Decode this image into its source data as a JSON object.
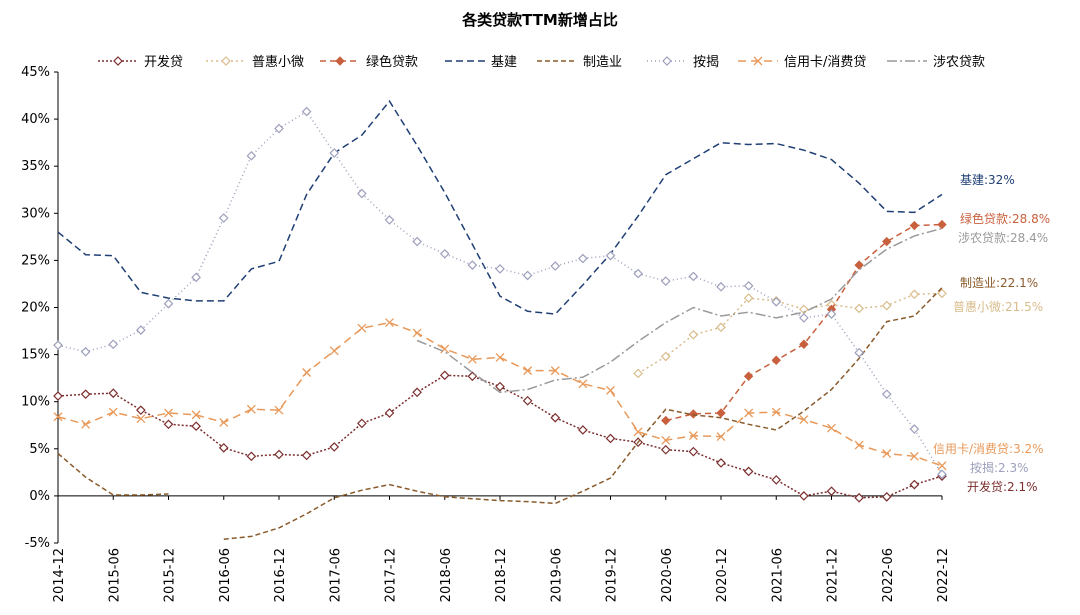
{
  "chart_data": {
    "type": "line",
    "title": "各类贷款TTM新增占比",
    "ylim": [
      -5,
      45
    ],
    "yticks": [
      -5,
      0,
      5,
      10,
      15,
      20,
      25,
      30,
      35,
      40,
      45
    ],
    "ytick_labels": [
      "-5%",
      "0%",
      "5%",
      "10%",
      "15%",
      "20%",
      "25%",
      "30%",
      "35%",
      "40%",
      "45%"
    ],
    "x_tick_labels": [
      "2014-12",
      "2015-06",
      "2015-12",
      "2016-06",
      "2016-12",
      "2017-06",
      "2017-12",
      "2018-06",
      "2018-12",
      "2019-06",
      "2019-12",
      "2020-06",
      "2020-12",
      "2021-06",
      "2021-12",
      "2022-06",
      "2022-12"
    ],
    "x": [
      "2014-12",
      "2015-03",
      "2015-06",
      "2015-09",
      "2015-12",
      "2016-03",
      "2016-06",
      "2016-09",
      "2016-12",
      "2017-03",
      "2017-06",
      "2017-09",
      "2017-12",
      "2018-03",
      "2018-06",
      "2018-09",
      "2018-12",
      "2019-03",
      "2019-06",
      "2019-09",
      "2019-12",
      "2020-03",
      "2020-06",
      "2020-09",
      "2020-12",
      "2021-03",
      "2021-06",
      "2021-09",
      "2021-12",
      "2022-03",
      "2022-06",
      "2022-09",
      "2022-12"
    ],
    "legend_position": "top",
    "grid": false,
    "series": [
      {
        "name": "开发贷",
        "color": "#7B2E2E",
        "dash": "2,2",
        "marker": "diamond",
        "end_label": "开发贷:2.1%",
        "values": [
          10.6,
          10.8,
          10.9,
          9.1,
          7.6,
          7.4,
          5.1,
          4.2,
          4.4,
          4.3,
          5.2,
          7.7,
          8.8,
          11.0,
          12.8,
          12.7,
          11.6,
          10.1,
          8.3,
          7.0,
          6.1,
          5.7,
          4.9,
          4.7,
          3.5,
          2.6,
          1.7,
          0.0,
          0.5,
          -0.2,
          -0.1,
          1.2,
          2.1
        ]
      },
      {
        "name": "普惠小微",
        "color": "#D9BC8C",
        "dash": "2,3",
        "marker": "diamond",
        "end_label": "普惠小微:21.5%",
        "values": [
          null,
          null,
          null,
          null,
          null,
          null,
          null,
          null,
          null,
          null,
          null,
          null,
          null,
          null,
          null,
          null,
          null,
          null,
          null,
          null,
          null,
          13.0,
          14.8,
          17.1,
          17.9,
          21.0,
          20.7,
          19.8,
          20.3,
          19.9,
          20.2,
          21.4,
          21.5
        ]
      },
      {
        "name": "绿色贷款",
        "color": "#C8603E",
        "dash": "6,4",
        "marker": "diamond-filled",
        "end_label": "绿色贷款:28.8%",
        "values": [
          null,
          null,
          null,
          null,
          null,
          null,
          null,
          null,
          null,
          null,
          null,
          null,
          null,
          null,
          null,
          null,
          null,
          null,
          null,
          null,
          null,
          null,
          8.0,
          8.7,
          8.8,
          12.7,
          14.4,
          16.1,
          19.8,
          24.5,
          27.0,
          28.7,
          28.8
        ]
      },
      {
        "name": "基建",
        "color": "#1F3F74",
        "dash": "7,4",
        "marker": "none",
        "end_label": "基建:32%",
        "values": [
          28.0,
          25.6,
          25.5,
          21.6,
          21.0,
          20.7,
          20.7,
          24.1,
          24.9,
          32.0,
          36.4,
          38.3,
          41.9,
          37.2,
          32.2,
          26.7,
          21.2,
          19.6,
          19.3,
          22.4,
          25.7,
          29.7,
          34.1,
          35.8,
          37.5,
          37.3,
          37.4,
          36.7,
          35.7,
          33.2,
          30.2,
          30.1,
          32.0
        ]
      },
      {
        "name": "制造业",
        "color": "#8A5A2B",
        "dash": "5,3",
        "marker": "none",
        "end_label": "制造业:22.1%",
        "values": [
          4.5,
          2.0,
          0.1,
          0.1,
          0.2,
          null,
          -4.6,
          -4.3,
          -3.4,
          -1.9,
          -0.2,
          0.6,
          1.2,
          0.5,
          -0.1,
          -0.3,
          -0.5,
          -0.6,
          -0.8,
          0.5,
          1.9,
          5.7,
          9.2,
          8.6,
          8.3,
          7.6,
          7.0,
          9.0,
          11.3,
          14.6,
          18.5,
          19.1,
          22.1
        ]
      },
      {
        "name": "按揭",
        "color": "#9DA0BC",
        "dash": "1,3",
        "marker": "diamond",
        "end_label": "按揭:2.3%",
        "values": [
          16.0,
          15.3,
          16.1,
          17.6,
          20.4,
          23.2,
          29.5,
          36.1,
          39.0,
          40.8,
          36.4,
          32.1,
          29.3,
          27.0,
          25.7,
          24.5,
          24.1,
          23.4,
          24.4,
          25.2,
          25.5,
          23.6,
          22.8,
          23.3,
          22.2,
          22.3,
          20.6,
          18.9,
          19.3,
          15.2,
          10.8,
          7.1,
          2.3
        ]
      },
      {
        "name": "信用卡/消费贷",
        "color": "#E8995A",
        "dash": "8,5",
        "marker": "x",
        "end_label": "信用卡/消费贷:3.2%",
        "values": [
          8.4,
          7.6,
          8.9,
          8.2,
          8.8,
          8.6,
          7.8,
          9.2,
          9.1,
          13.1,
          15.4,
          17.8,
          18.4,
          17.3,
          15.6,
          14.5,
          14.7,
          13.3,
          13.3,
          11.9,
          11.2,
          6.8,
          5.9,
          6.4,
          6.3,
          8.8,
          8.9,
          8.1,
          7.2,
          5.4,
          4.5,
          4.2,
          3.2
        ]
      },
      {
        "name": "涉农贷款",
        "color": "#9A9A9A",
        "dash": "10,3,2,3",
        "marker": "none",
        "end_label": "涉农贷款:28.4%",
        "values": [
          null,
          null,
          null,
          null,
          null,
          null,
          null,
          null,
          null,
          null,
          null,
          null,
          null,
          16.5,
          15.3,
          13.1,
          11.0,
          11.3,
          12.3,
          12.6,
          14.2,
          16.4,
          18.4,
          20.0,
          19.1,
          19.5,
          18.9,
          19.5,
          20.9,
          24.0,
          26.2,
          27.6,
          28.4
        ]
      }
    ]
  }
}
